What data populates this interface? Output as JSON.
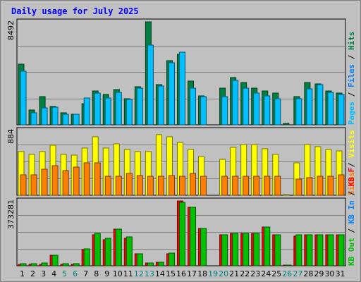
{
  "chart_data": {
    "type": "bar",
    "title": "Daily usage for July 2025",
    "categories": [
      "1",
      "2",
      "3",
      "4",
      "5",
      "6",
      "7",
      "8",
      "9",
      "10",
      "11",
      "12",
      "13",
      "14",
      "15",
      "16",
      "17",
      "18",
      "19",
      "20",
      "21",
      "22",
      "23",
      "24",
      "25",
      "26",
      "27",
      "28",
      "29",
      "30",
      "31"
    ],
    "category_colors": [
      "#000000",
      "#000000",
      "#000000",
      "#000000",
      "#008080",
      "#008080",
      "#000000",
      "#000000",
      "#000000",
      "#000000",
      "#000000",
      "#008080",
      "#008080",
      "#000000",
      "#000000",
      "#000000",
      "#000000",
      "#000000",
      "#008080",
      "#008080",
      "#000000",
      "#000000",
      "#000000",
      "#000000",
      "#000000",
      "#008080",
      "#008080",
      "#000000",
      "#000000",
      "#000000",
      "#000000"
    ],
    "panels": [
      {
        "id": "hits-files-pages",
        "ymax_label": "8492",
        "ymax": 8492,
        "grid": true,
        "series": [
          {
            "name": "Hits",
            "color": "#008040",
            "values": [
              5000,
              1200,
              2300,
              1500,
              1000,
              900,
              1750,
              2800,
              2500,
              2900,
              2150,
              3150,
              8492,
              3300,
              5300,
              5800,
              3600,
              2400,
              0,
              3000,
              3900,
              3500,
              3000,
              2800,
              2600,
              100,
              2350,
              3500,
              3400,
              2800,
              2600
            ]
          },
          {
            "name": "Files",
            "color": "#0080ff",
            "values": [
              null,
              null,
              null,
              null,
              null,
              null,
              null,
              null,
              null,
              null,
              null,
              null,
              null,
              null,
              null,
              null,
              null,
              null,
              null,
              null,
              null,
              null,
              null,
              null,
              null,
              null,
              null,
              null,
              null,
              null,
              null
            ]
          },
          {
            "name": "Pages",
            "color": "#00c0ff",
            "values": [
              4400,
              1000,
              1400,
              1450,
              850,
              900,
              2200,
              2600,
              2200,
              2700,
              2100,
              3000,
              6600,
              3200,
              5100,
              6000,
              3000,
              2300,
              0,
              2350,
              3650,
              3050,
              2600,
              2400,
              2150,
              0,
              2150,
              2950,
              3300,
              2700,
              2500
            ]
          }
        ],
        "legend": [
          {
            "text": "Hits",
            "color": "#008040"
          },
          {
            "text": "Files",
            "color": "#0080ff"
          },
          {
            "text": "Pages",
            "color": "#00c0ff"
          }
        ]
      },
      {
        "id": "visits-sites",
        "ymax_label": "884",
        "ymax": 884,
        "grid": true,
        "series": [
          {
            "name": "Visits",
            "color": "#ffff00",
            "values": [
              600,
              560,
              600,
              680,
              560,
              550,
              640,
              800,
              640,
              700,
              620,
              600,
              600,
              830,
              800,
              720,
              620,
              530,
              0,
              490,
              650,
              690,
              690,
              630,
              560,
              10,
              440,
              690,
              660,
              620,
              610
            ]
          },
          {
            "name": "Sites",
            "color": "#ff8000",
            "values": [
              280,
              280,
              360,
              400,
              340,
              380,
              440,
              440,
              260,
              260,
              300,
              270,
              260,
              260,
              270,
              260,
              300,
              260,
              0,
              260,
              260,
              260,
              260,
              260,
              260,
              0,
              220,
              240,
              260,
              260,
              280
            ]
          }
        ],
        "legend": [
          {
            "text": "Visits",
            "color": "#ffff00"
          },
          {
            "text": "Sites",
            "color": "#ff8000"
          }
        ]
      },
      {
        "id": "kb-in-out",
        "ymax_label": "373281",
        "ymax": 373281,
        "grid": true,
        "series": [
          {
            "name": "KBF",
            "color": "#ff0000",
            "values": [
              10000,
              8000,
              10000,
              60000,
              10000,
              10000,
              95000,
              180000,
              150000,
              210000,
              160000,
              70000,
              18000,
              20000,
              70000,
              373281,
              335000,
              215000,
              0,
              180000,
              185000,
              185000,
              185000,
              225000,
              180000,
              5000,
              170000,
              180000,
              180000,
              180000,
              180000
            ]
          },
          {
            "name": "KB In",
            "color": "#0080ff",
            "values": [
              null,
              null,
              null,
              null,
              null,
              null,
              null,
              null,
              null,
              null,
              null,
              null,
              null,
              null,
              null,
              null,
              null,
              null,
              null,
              null,
              null,
              null,
              null,
              null,
              null,
              null,
              null,
              null,
              null,
              null,
              null
            ]
          },
          {
            "name": "KB Out",
            "color": "#00c000",
            "values": [
              14000,
              12000,
              16000,
              60000,
              11000,
              12000,
              98000,
              185000,
              160000,
              210000,
              165000,
              70000,
              18000,
              20000,
              75000,
              365000,
              335000,
              215000,
              0,
              180000,
              185000,
              185000,
              185000,
              225000,
              180000,
              3000,
              180000,
              180000,
              180000,
              180000,
              180000
            ]
          }
        ],
        "legend": [
          {
            "text": "KB F",
            "color": "#ff0000"
          },
          {
            "text": "KB In",
            "color": "#0080ff"
          },
          {
            "text": "KB Out",
            "color": "#00c000"
          }
        ]
      }
    ]
  }
}
